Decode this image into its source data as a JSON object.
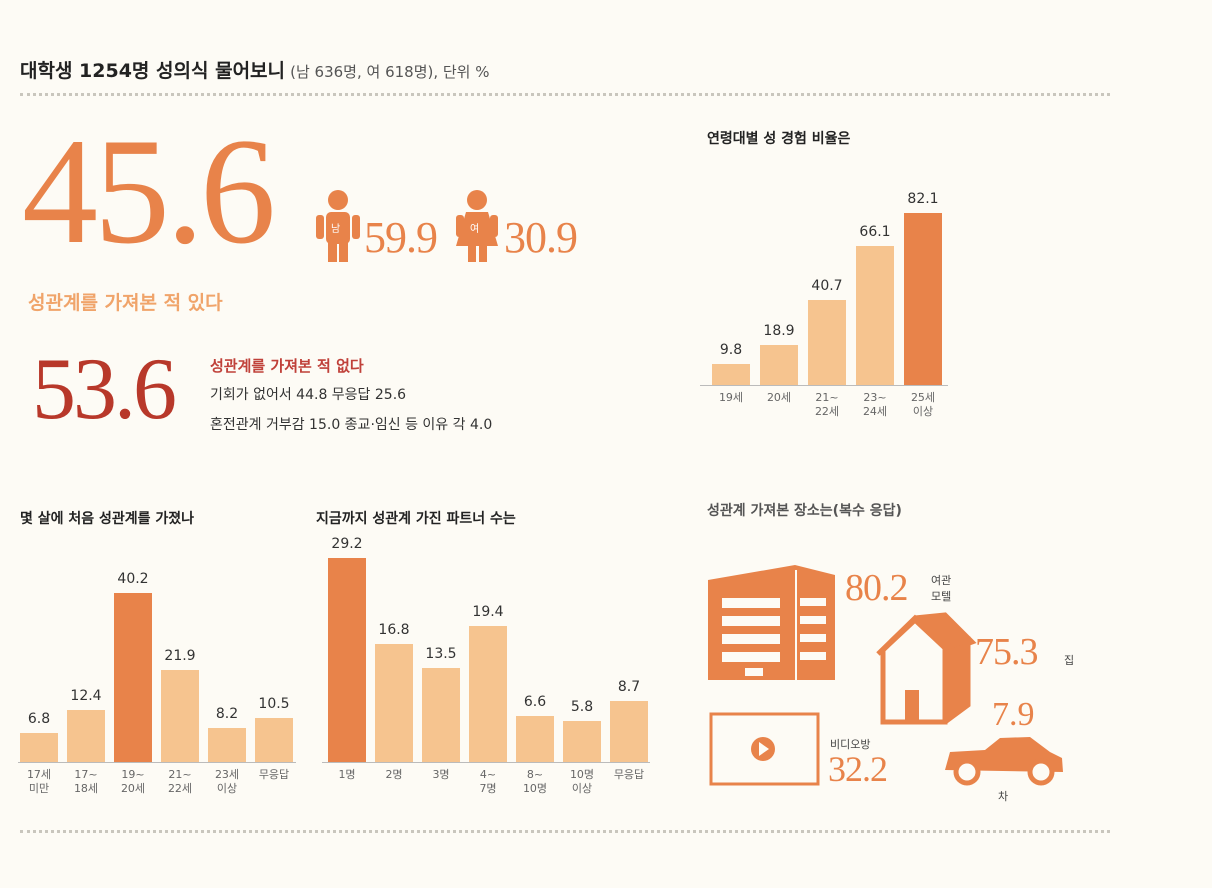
{
  "header": {
    "title": "대학생 1254명 성의식 물어보니",
    "subtitle": "(남 636명, 여 618명), 단위 %"
  },
  "summary": {
    "yes_value": "45.6",
    "yes_label": "성관계를 가져본 적 있다",
    "male_tag": "남",
    "male_value": "59.9",
    "female_tag": "여",
    "female_value": "30.9",
    "no_value": "53.6",
    "no_label": "성관계를 가져본 적 없다",
    "no_reason_1": "기회가 없어서 44.8  무응답 25.6",
    "no_reason_2": "혼전관계 거부감 15.0 종교·임신 등 이유 각 4.0"
  },
  "colors": {
    "dark": "#e8834a",
    "light": "#f6c48f",
    "yes": "#e8834a",
    "no": "#b8382a"
  },
  "chart_data": [
    {
      "type": "bar",
      "title": "연령대별 성 경험 비율은",
      "categories": [
        "19세",
        "20세",
        "21~22세",
        "23~24세",
        "25세 이상"
      ],
      "values": [
        9.8,
        18.9,
        40.7,
        66.1,
        82.1
      ],
      "highlight": 4
    },
    {
      "type": "bar",
      "title": "몇 살에 처음 성관계를 가졌나",
      "categories": [
        "17세 미만",
        "17~18세",
        "19~20세",
        "21~22세",
        "23세 이상",
        "무응답"
      ],
      "values": [
        6.8,
        12.4,
        40.2,
        21.9,
        8.2,
        10.5
      ],
      "highlight": 2
    },
    {
      "type": "bar",
      "title": "지금까지 성관계 가진 파트너 수는",
      "categories": [
        "1명",
        "2명",
        "3명",
        "4~7명",
        "8~10명",
        "10명 이상",
        "무응답"
      ],
      "values": [
        29.2,
        16.8,
        13.5,
        19.4,
        6.6,
        5.8,
        8.7
      ],
      "highlight": 0
    }
  ],
  "places": {
    "title": "성관계 가져본 장소는(복수 응답)",
    "items": [
      {
        "label": "여관 모텔",
        "value": "80.2",
        "icon": "building-icon"
      },
      {
        "label": "집",
        "value": "75.3",
        "icon": "house-icon"
      },
      {
        "label": "비디오방",
        "value": "32.2",
        "icon": "video-icon"
      },
      {
        "label": "차",
        "value": "7.9",
        "icon": "car-icon"
      }
    ]
  }
}
